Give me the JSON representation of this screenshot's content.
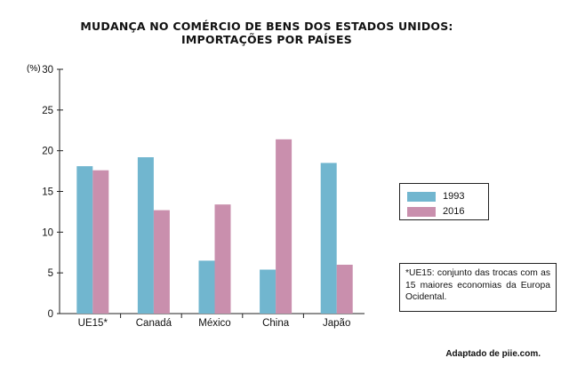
{
  "chart_data": {
    "type": "bar",
    "title": "MUDANÇA NO COMÉRCIO DE BENS DOS ESTADOS UNIDOS:",
    "subtitle": "IMPORTAÇÕES POR PAÍSES",
    "ylabel": "(%)",
    "ylim": [
      0,
      30
    ],
    "yticks": [
      0,
      5,
      10,
      15,
      20,
      25,
      30
    ],
    "categories": [
      "UE15*",
      "Canadá",
      "México",
      "China",
      "Japão"
    ],
    "series": [
      {
        "name": "1993",
        "color": "#71b6cf",
        "values": [
          18.1,
          19.2,
          6.5,
          5.4,
          18.5
        ]
      },
      {
        "name": "2016",
        "color": "#c98fad",
        "values": [
          17.6,
          12.7,
          13.4,
          21.4,
          6.0
        ]
      }
    ],
    "legend_position": "right",
    "grid": false
  },
  "note": "*UE15: conjunto das trocas com as 15 maiores economias da Europa Ocidental.",
  "source": "Adaptado de piie.com."
}
